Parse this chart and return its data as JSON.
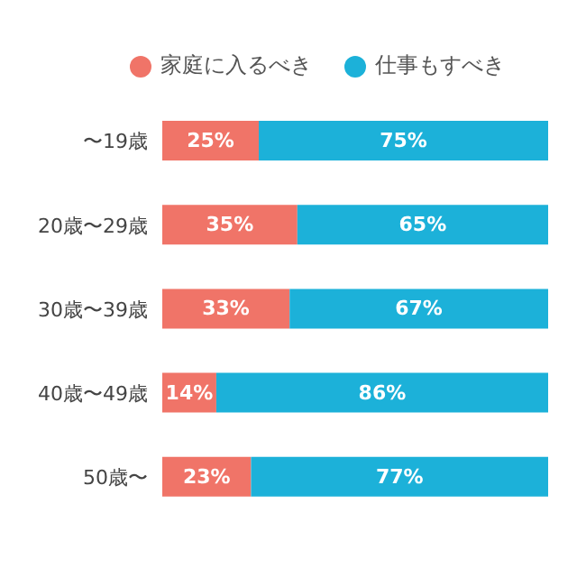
{
  "chart_data": {
    "type": "bar",
    "orientation": "horizontal",
    "stacked": true,
    "legend": "top",
    "categories": [
      "〜19歳",
      "20歳〜29歳",
      "30歳〜39歳",
      "40歳〜49歳",
      "50歳〜"
    ],
    "series": [
      {
        "name": "家庭に入るべき",
        "color": "#f07468",
        "values": [
          25,
          35,
          33,
          14,
          23
        ],
        "value_labels": [
          "25%",
          "35%",
          "33%",
          "14%",
          "23%"
        ]
      },
      {
        "name": "仕事もすべき",
        "color": "#1cb1d9",
        "values": [
          75,
          65,
          67,
          86,
          77
        ],
        "value_labels": [
          "75%",
          "65%",
          "67%",
          "86%",
          "77%"
        ]
      }
    ]
  }
}
